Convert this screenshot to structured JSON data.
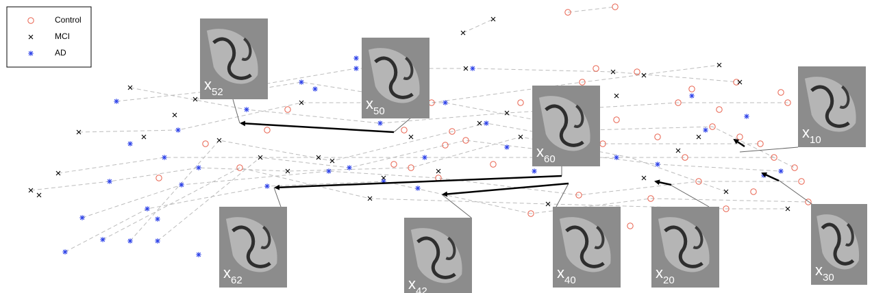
{
  "chart_data": {
    "type": "scatter",
    "xlim": [
      0,
      1273
    ],
    "ylim": [
      428,
      0
    ],
    "legend": "upper left",
    "series": [
      {
        "name": "Control",
        "color": "#e8604c",
        "marker": "circle",
        "x": [
          829,
          898,
          1080,
          1050,
          1140,
          1150,
          1160,
          1170,
          1020,
          1000,
          960,
          930,
          870,
          850,
          760,
          660,
          650,
          640,
          600,
          590,
          420,
          390,
          350,
          300,
          232,
          775,
          920,
          1060,
          1100,
          1130,
          990,
          900,
          880,
          1040,
          1010,
          630,
          575,
          845,
          950,
          1180,
          1110,
          680,
          720,
          1075
        ],
        "values": [
          18,
          10,
          200,
          160,
          135,
          150,
          245,
          265,
          265,
          230,
          200,
          105,
          100,
          120,
          150,
          192,
          212,
          260,
          245,
          190,
          160,
          190,
          245,
          210,
          260,
          312,
          330,
          305,
          280,
          230,
          150,
          175,
          210,
          185,
          130,
          150,
          240,
          285,
          290,
          295,
          210,
          205,
          240,
          120
        ]
      },
      {
        "name": "MCI",
        "color": "#000000",
        "marker": "x",
        "x": [
          720,
          676,
          190,
          115,
          85,
          45,
          57,
          210,
          255,
          285,
          355,
          320,
          440,
          465,
          485,
          540,
          600,
          640,
          700,
          740,
          760,
          800,
          860,
          895,
          940,
          1050,
          1080,
          1020,
          990,
          1060,
          1150,
          940,
          900,
          680,
          560,
          420,
          380
        ],
        "values": [
          28,
          48,
          128,
          193,
          253,
          278,
          285,
          200,
          168,
          145,
          128,
          205,
          150,
          230,
          235,
          290,
          200,
          250,
          180,
          165,
          200,
          298,
          190,
          105,
          110,
          95,
          120,
          200,
          220,
          280,
          305,
          260,
          140,
          100,
          260,
          250,
          230
        ]
      },
      {
        "name": "AD",
        "color": "#2a3fe8",
        "marker": "star",
        "x": [
          170,
          190,
          260,
          240,
          290,
          160,
          120,
          150,
          95,
          190,
          230,
          215,
          230,
          290,
          265,
          390,
          360,
          440,
          460,
          520,
          520,
          555,
          510,
          480,
          560,
          610,
          650,
          690,
          710,
          740,
          780,
          900,
          960,
          1030,
          1090,
          1115,
          1140,
          1010,
          620
        ],
        "values": [
          148,
          210,
          190,
          230,
          245,
          265,
          318,
          350,
          368,
          352,
          352,
          305,
          320,
          372,
          270,
          272,
          160,
          120,
          130,
          100,
          85,
          180,
          245,
          250,
          265,
          275,
          150,
          100,
          180,
          215,
          250,
          230,
          240,
          190,
          170,
          256,
          250,
          140,
          230
        ]
      }
    ],
    "annotations": [
      {
        "label": "x",
        "subscript": "52"
      },
      {
        "label": "x",
        "subscript": "50"
      },
      {
        "label": "x",
        "subscript": "60"
      },
      {
        "label": "x",
        "subscript": "10"
      },
      {
        "label": "x",
        "subscript": "62"
      },
      {
        "label": "x",
        "subscript": "42"
      },
      {
        "label": "x",
        "subscript": "40"
      },
      {
        "label": "x",
        "subscript": "20"
      },
      {
        "label": "x",
        "subscript": "30"
      }
    ]
  }
}
